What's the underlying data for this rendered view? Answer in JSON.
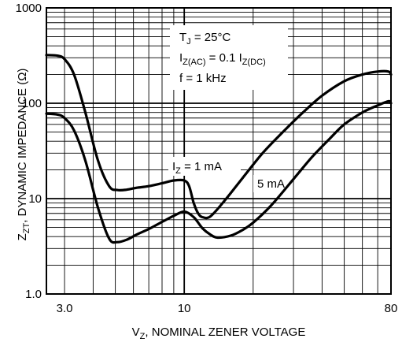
{
  "chart_data": {
    "type": "line",
    "x_scale": "log",
    "y_scale": "log",
    "xlim": [
      2.5,
      80
    ],
    "ylim": [
      1,
      1000
    ],
    "grid": true,
    "x_tick_labels": [
      {
        "value": 3.0,
        "label": "3.0"
      },
      {
        "value": 10,
        "label": "10"
      },
      {
        "value": 80,
        "label": "80"
      }
    ],
    "y_tick_labels": [
      {
        "value": 1,
        "label": "1.0"
      },
      {
        "value": 10,
        "label": "10"
      },
      {
        "value": 100,
        "label": "100"
      },
      {
        "value": 1000,
        "label": "1000"
      }
    ],
    "xlabel": {
      "main": "V",
      "sub": "Z",
      "rest": ", NOMINAL ZENER VOLTAGE"
    },
    "ylabel": {
      "main": "Z",
      "sub": "ZT",
      "rest": ", DYNAMIC IMPEDANCE (Ω)"
    },
    "conditions": {
      "line1": {
        "main": "T",
        "sub": "J",
        "rest": " = 25°C"
      },
      "line2": {
        "p1": "I",
        "s1": "Z(AC)",
        "p2": " = 0.1 I",
        "s2": "Z(DC)"
      },
      "line3": "f = 1 kHz"
    },
    "series_labels": {
      "iz1": {
        "main": "I",
        "sub": "Z",
        "rest": " = 1 mA"
      },
      "iz5": "5 mA"
    },
    "series": [
      {
        "name": "I_Z = 1 mA",
        "x": [
          2.5,
          2.8,
          3.0,
          3.3,
          3.7,
          4.2,
          4.7,
          5.1,
          5.6,
          6.2,
          7.0,
          8.0,
          9.0,
          10.0,
          10.5,
          11.0,
          11.5,
          12.0,
          13.0,
          15.0,
          18.0,
          22.0,
          27.0,
          33.0,
          40.0,
          50.0,
          60.0,
          70.0,
          78.0,
          80.0
        ],
        "y": [
          320,
          315,
          290,
          200,
          80,
          25,
          13.5,
          12.3,
          12.4,
          13.0,
          13.5,
          14.5,
          15.5,
          15.5,
          13.5,
          9.0,
          7.0,
          6.4,
          6.5,
          9.5,
          16.5,
          30,
          50,
          80,
          120,
          170,
          200,
          215,
          215,
          200
        ]
      },
      {
        "name": "5 mA",
        "x": [
          2.5,
          2.8,
          3.0,
          3.3,
          3.7,
          4.2,
          4.7,
          5.1,
          5.6,
          6.2,
          7.0,
          8.0,
          9.0,
          10.0,
          11.0,
          12.0,
          13.0,
          14.0,
          16.0,
          18.0,
          20.0,
          24.0,
          30.0,
          36.0,
          43.0,
          50.0,
          60.0,
          70.0,
          78.0,
          80.0
        ],
        "y": [
          78,
          76,
          70,
          52,
          25,
          8,
          3.8,
          3.5,
          3.7,
          4.2,
          4.8,
          5.7,
          6.6,
          7.3,
          6.4,
          4.9,
          4.2,
          3.9,
          4.1,
          4.7,
          5.6,
          8.5,
          16,
          27,
          42,
          60,
          80,
          95,
          105,
          100
        ]
      }
    ]
  }
}
